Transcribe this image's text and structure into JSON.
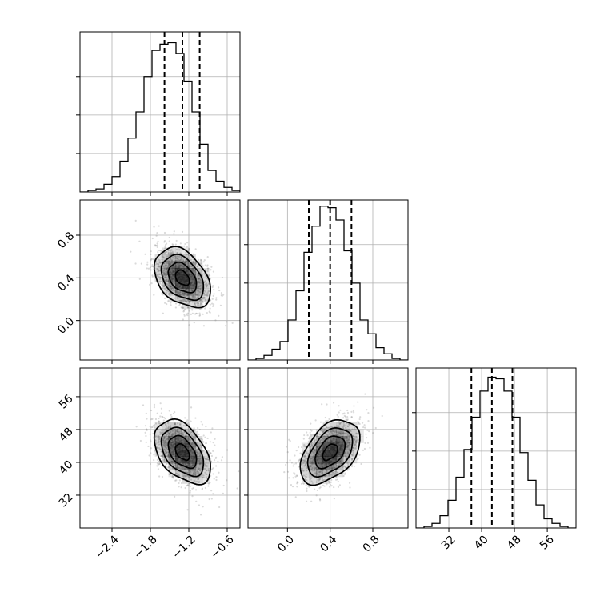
{
  "chart_data": {
    "type": "corner",
    "grid": true,
    "params": [
      {
        "xlim": [
          -2.9,
          -0.4
        ],
        "ticks": [
          -2.4,
          -1.8,
          -1.2,
          -0.6
        ],
        "tick_labels": [
          "−2.4",
          "−1.8",
          "−1.2",
          "−0.6"
        ],
        "quantiles": [
          -1.58,
          -1.3,
          -1.03
        ],
        "hist_bins": [
          -2.9,
          -2.775,
          -2.65,
          -2.525,
          -2.4,
          -2.275,
          -2.15,
          -2.025,
          -1.9,
          -1.775,
          -1.65,
          -1.525,
          -1.4,
          -1.275,
          -1.15,
          -1.025,
          -0.9,
          -0.775,
          -0.65,
          -0.525,
          -0.4
        ],
        "hist_counts": [
          0,
          1,
          2,
          5,
          10,
          20,
          35,
          52,
          75,
          92,
          96,
          97,
          90,
          72,
          52,
          31,
          14,
          7,
          3,
          1
        ],
        "hist_ymax": 100
      },
      {
        "xlim": [
          -0.37,
          1.13
        ],
        "ticks": [
          0.0,
          0.4,
          0.8
        ],
        "tick_labels": [
          "0.0",
          "0.4",
          "0.8"
        ],
        "quantiles": [
          0.2,
          0.4,
          0.6
        ],
        "hist_bins": [
          -0.37,
          -0.295,
          -0.22,
          -0.145,
          -0.07,
          0.005,
          0.08,
          0.155,
          0.23,
          0.305,
          0.38,
          0.455,
          0.53,
          0.605,
          0.68,
          0.755,
          0.83,
          0.905,
          0.98,
          1.055,
          1.13
        ],
        "hist_counts": [
          0,
          1,
          3,
          7,
          12,
          26,
          45,
          70,
          87,
          100,
          99,
          91,
          71,
          50,
          26,
          17,
          8,
          4,
          1,
          0
        ],
        "hist_ymax": 100
      },
      {
        "xlim": [
          24,
          63
        ],
        "ticks": [
          32,
          40,
          48,
          56
        ],
        "tick_labels": [
          "32",
          "40",
          "48",
          "56"
        ],
        "quantiles": [
          37.5,
          42.5,
          47.5
        ],
        "hist_bins": [
          24,
          25.95,
          27.9,
          29.85,
          31.8,
          33.75,
          35.7,
          37.65,
          39.6,
          41.55,
          43.5,
          45.45,
          47.4,
          49.35,
          51.3,
          53.25,
          55.2,
          57.15,
          59.1,
          61.05,
          63
        ],
        "hist_counts": [
          0,
          1,
          3,
          8,
          18,
          33,
          51,
          72,
          89,
          98,
          97,
          89,
          72,
          49,
          31,
          15,
          6,
          3,
          1,
          0
        ],
        "hist_ymax": 100
      }
    ],
    "pairs": [
      {
        "row": 1,
        "col": 0,
        "x_range": [
          -2.9,
          -0.4
        ],
        "y_range": [
          -0.37,
          1.13
        ],
        "center": [
          -1.3,
          0.4
        ],
        "sd": [
          0.22,
          0.14
        ],
        "corr": -0.38,
        "y_ticks": [
          0.0,
          0.4,
          0.8
        ],
        "y_tick_labels": [
          "0.0",
          "0.4",
          "0.8"
        ]
      },
      {
        "row": 2,
        "col": 0,
        "x_range": [
          -2.9,
          -0.4
        ],
        "y_range": [
          24,
          63
        ],
        "center": [
          -1.3,
          42.5
        ],
        "sd": [
          0.22,
          3.9
        ],
        "corr": -0.45,
        "y_ticks": [
          32,
          40,
          48,
          56
        ],
        "y_tick_labels": [
          "32",
          "40",
          "48",
          "56"
        ]
      },
      {
        "row": 2,
        "col": 1,
        "x_range": [
          -0.37,
          1.13
        ],
        "y_range": [
          24,
          63
        ],
        "center": [
          0.4,
          42.5
        ],
        "sd": [
          0.14,
          3.9
        ],
        "corr": 0.45
      }
    ],
    "contour_levels_sigma": [
      0.5,
      1.0,
      1.5,
      2.0
    ]
  }
}
